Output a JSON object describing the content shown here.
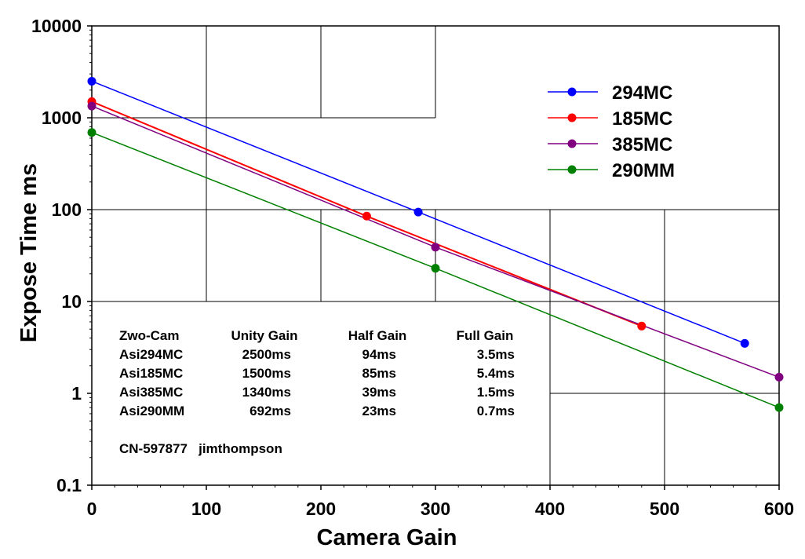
{
  "chart_data": {
    "type": "line",
    "title": "",
    "xlabel": "Camera Gain",
    "ylabel": "Expose Time  ms",
    "xscale": "linear",
    "yscale": "log",
    "xlim": [
      0,
      600
    ],
    "ylim": [
      0.1,
      10000
    ],
    "xticks": [
      0,
      100,
      200,
      300,
      400,
      500,
      600
    ],
    "xtick_labels": [
      "0",
      "100",
      "200",
      "300",
      "400",
      "500",
      "600"
    ],
    "yticks": [
      0.1,
      1,
      10,
      100,
      1000,
      10000
    ],
    "ytick_labels": [
      "0.1",
      "1",
      "10",
      "100",
      "1000",
      "10000"
    ],
    "legend_position": "top-right",
    "series": [
      {
        "name": "294MC",
        "color": "#0000ff",
        "x": [
          0,
          285,
          570
        ],
        "y": [
          2500,
          94,
          3.5
        ]
      },
      {
        "name": "185MC",
        "color": "#ff0000",
        "x": [
          0,
          240,
          480
        ],
        "y": [
          1500,
          85,
          5.4
        ]
      },
      {
        "name": "385MC",
        "color": "#800080",
        "x": [
          0,
          300,
          600
        ],
        "y": [
          1340,
          39,
          1.5
        ]
      },
      {
        "name": "290MM",
        "color": "#008000",
        "x": [
          0,
          300,
          600
        ],
        "y": [
          692,
          23,
          0.7
        ]
      }
    ],
    "annotation_table": {
      "headers": [
        "Zwo-Cam",
        "Unity Gain",
        "Half Gain",
        "Full Gain"
      ],
      "rows": [
        [
          "Asi294MC",
          "2500ms",
          "94ms",
          "3.5ms"
        ],
        [
          "Asi185MC",
          "1500ms",
          "85ms",
          "5.4ms"
        ],
        [
          "Asi385MC",
          "1340ms",
          "39ms",
          "1.5ms"
        ],
        [
          "Asi290MM",
          "692ms",
          "23ms",
          "0.7ms"
        ]
      ]
    },
    "credit": "CN-597877   jimthompson"
  }
}
